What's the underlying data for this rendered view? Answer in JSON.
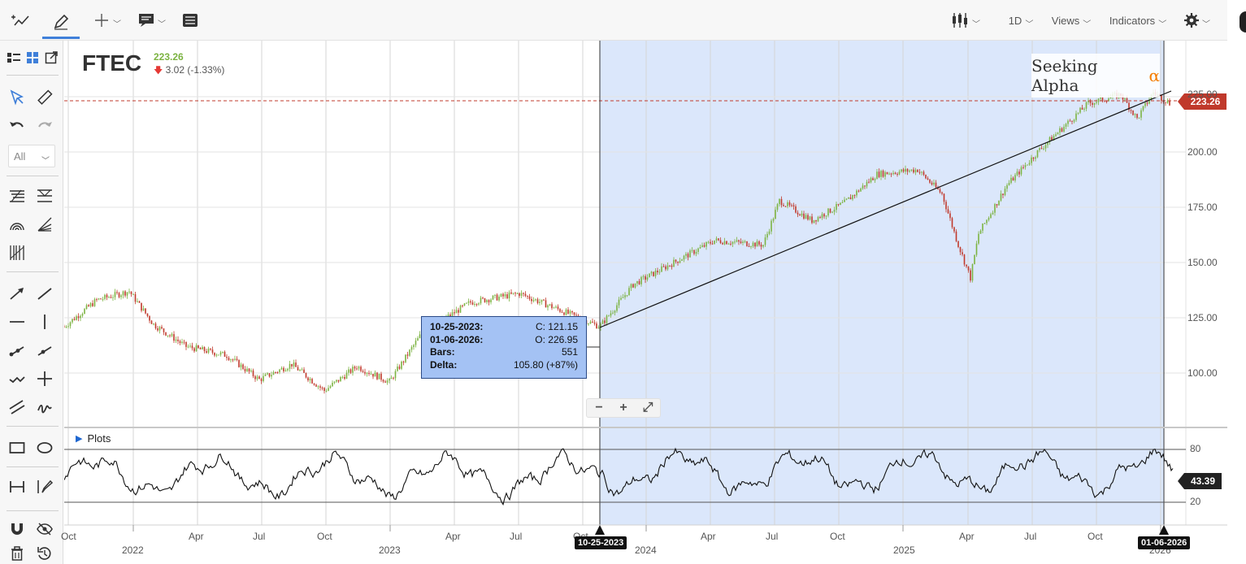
{
  "toolbar": {
    "timeframe": "1D",
    "views_label": "Views",
    "indicators_label": "Indicators"
  },
  "sidebar": {
    "filter_value": "All"
  },
  "chart": {
    "ticker": "FTEC",
    "last_price": "223.26",
    "change": "3.02 (-1.33%)",
    "logo_text": "Seeking Alpha",
    "logo_symbol": "α",
    "price_tag": "223.26",
    "osc_tag": "43.39",
    "plots_label": "Plots",
    "y_ticks": [
      "225.00",
      "200.00",
      "175.00",
      "150.00",
      "125.00",
      "100.00"
    ],
    "osc_ticks": [
      "80",
      "20"
    ],
    "x_month_ticks": [
      "Oct",
      "Apr",
      "Jul",
      "Oct",
      "Apr",
      "Jul",
      "Oct",
      "Apr",
      "Jul",
      "Oct",
      "Apr",
      "Jul",
      "Oct"
    ],
    "x_year_ticks": [
      "2022",
      "2023",
      "2024",
      "2025",
      "2026"
    ],
    "selection_start_tag": "10-25-2023",
    "selection_end_tag": "01-06-2026",
    "colors": {
      "selection_fill": "#dbe7fb",
      "up_candle": "#7cb342",
      "down_candle": "#c0392b",
      "price_line": "#c0392b"
    }
  },
  "measure": {
    "start_date": "10-25-2023:",
    "end_date": "01-06-2026:",
    "close": "C: 121.15",
    "open": "O: 226.95",
    "bars_label": "Bars:",
    "bars_value": "551",
    "delta_label": "Delta:",
    "delta_value": "105.80 (+87%)"
  },
  "zoom": {
    "minus": "−",
    "plus": "+",
    "fit": "⤢"
  }
}
